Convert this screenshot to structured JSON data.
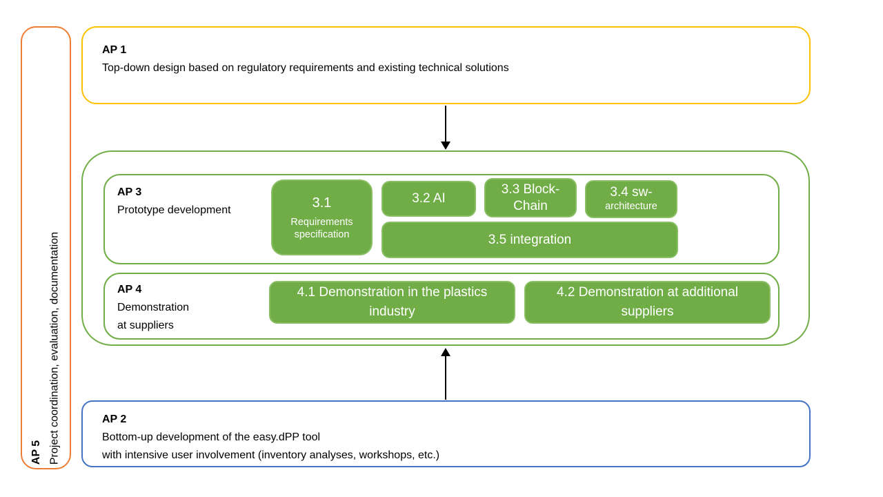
{
  "colors": {
    "ap1_border": "#FFC000",
    "ap2_border": "#4472C4",
    "ap5_border": "#ED7D31",
    "green_border": "#70AD47",
    "task_fill": "#70AD47",
    "task_text": "#FFFFFF",
    "arrow": "#000000",
    "text": "#000000",
    "background": "#FFFFFF"
  },
  "ap1": {
    "title": "AP 1",
    "description": "Top-down design based on regulatory requirements and existing technical solutions"
  },
  "ap2": {
    "title": "AP 2",
    "line1": "Bottom-up development of the easy.dPP tool",
    "line2": "with intensive user involvement (inventory analyses, workshops, etc.)"
  },
  "ap3": {
    "title": "AP 3",
    "subtitle": "Prototype development",
    "tasks": {
      "t31": {
        "main": "3.1",
        "sub": "Requirements specification"
      },
      "t32": {
        "main": "3.2 AI"
      },
      "t33": {
        "main": "3.3 Block-Chain"
      },
      "t34": {
        "main": "3.4 sw-",
        "sub": "architecture"
      },
      "t35": {
        "main": "3.5 integration"
      }
    }
  },
  "ap4": {
    "title": "AP 4",
    "subtitle_line1": "Demonstration",
    "subtitle_line2": "at suppliers",
    "tasks": {
      "t41": "4.1 Demonstration in the plastics industry",
      "t42": "4.2 Demonstration at additional suppliers"
    }
  },
  "ap5": {
    "title": "AP 5",
    "description": "Project coordination, evaluation, documentation"
  }
}
